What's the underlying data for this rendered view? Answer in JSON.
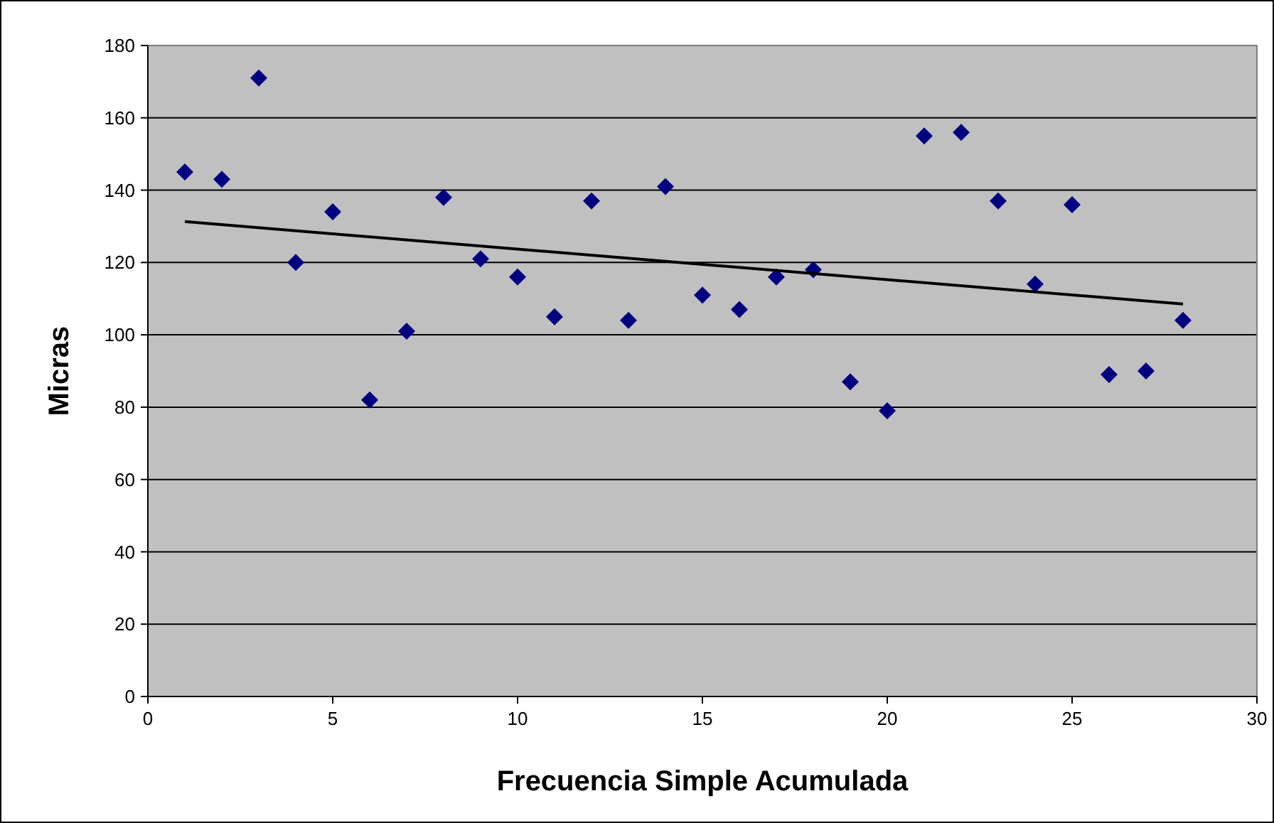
{
  "chart_data": {
    "type": "scatter",
    "xlabel": "Frecuencia Simple Acumulada",
    "ylabel": "Micras",
    "x": [
      1,
      2,
      3,
      4,
      5,
      6,
      7,
      8,
      9,
      10,
      11,
      12,
      13,
      14,
      15,
      16,
      17,
      18,
      19,
      20,
      21,
      22,
      23,
      24,
      25,
      26,
      27,
      28
    ],
    "series": [
      {
        "color": "#000080",
        "marker": "diamond",
        "values": [
          145,
          143,
          171,
          120,
          134,
          82,
          101,
          138,
          121,
          116,
          105,
          137,
          104,
          141,
          111,
          107,
          116,
          118,
          87,
          79,
          155,
          156,
          137,
          114,
          136,
          89,
          90,
          104
        ]
      },
      {
        "type": "line",
        "color": "#000000",
        "marker": "none",
        "x": [
          1,
          28
        ],
        "values": [
          131.3,
          108.5
        ]
      }
    ],
    "xlim": [
      0,
      30
    ],
    "xticks": [
      0,
      5,
      10,
      15,
      20,
      25,
      30
    ],
    "ylim": [
      0,
      180
    ],
    "yticks": [
      0,
      20,
      40,
      60,
      80,
      100,
      120,
      140,
      160,
      180
    ],
    "grid": "y"
  }
}
